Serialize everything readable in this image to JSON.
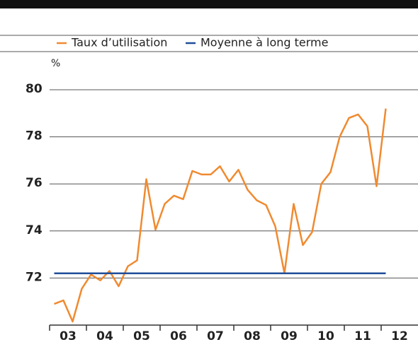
{
  "chart_data": {
    "type": "line",
    "y_label": "%",
    "x": [
      3.125,
      3.375,
      3.625,
      3.875,
      4.125,
      4.375,
      4.625,
      4.875,
      5.125,
      5.375,
      5.625,
      5.875,
      6.125,
      6.375,
      6.625,
      6.875,
      7.125,
      7.375,
      7.625,
      7.875,
      8.125,
      8.375,
      8.625,
      8.875,
      9.125,
      9.375,
      9.625,
      9.875,
      10.125,
      10.375,
      10.625,
      10.875,
      11.125,
      11.375,
      11.625,
      11.875,
      12.125
    ],
    "series": [
      {
        "name": "Taux d’utilisation",
        "color": "#f08a30",
        "values": [
          70.9,
          71.05,
          70.15,
          71.55,
          72.15,
          71.9,
          72.3,
          71.65,
          72.5,
          72.75,
          76.2,
          74.05,
          75.15,
          75.5,
          75.35,
          76.55,
          76.4,
          76.4,
          76.75,
          76.1,
          76.6,
          75.75,
          75.3,
          75.1,
          74.2,
          72.2,
          75.15,
          73.4,
          73.95,
          76.0,
          76.5,
          78.0,
          78.8,
          78.95,
          78.45,
          75.9,
          79.2
        ]
      },
      {
        "name": "Moyenne à long terme",
        "color": "#1f4e99",
        "values": [
          72.2,
          72.2,
          72.2,
          72.2,
          72.2,
          72.2,
          72.2,
          72.2,
          72.2,
          72.2,
          72.2,
          72.2,
          72.2,
          72.2,
          72.2,
          72.2,
          72.2,
          72.2,
          72.2,
          72.2,
          72.2,
          72.2,
          72.2,
          72.2,
          72.2,
          72.2,
          72.2,
          72.2,
          72.2,
          72.2,
          72.2,
          72.2,
          72.2,
          72.2,
          72.2,
          72.2,
          72.2
        ]
      }
    ],
    "xlim": [
      3,
      13
    ],
    "xticks": [
      {
        "value": 3,
        "label": "03"
      },
      {
        "value": 4,
        "label": "04"
      },
      {
        "value": 5,
        "label": "05"
      },
      {
        "value": 6,
        "label": "06"
      },
      {
        "value": 7,
        "label": "07"
      },
      {
        "value": 8,
        "label": "08"
      },
      {
        "value": 9,
        "label": "09"
      },
      {
        "value": 10,
        "label": "10"
      },
      {
        "value": 11,
        "label": "11"
      },
      {
        "value": 12,
        "label": "12"
      }
    ],
    "ylim": [
      70,
      80
    ],
    "yticks": [
      72,
      74,
      76,
      78,
      80
    ],
    "grid": true
  }
}
